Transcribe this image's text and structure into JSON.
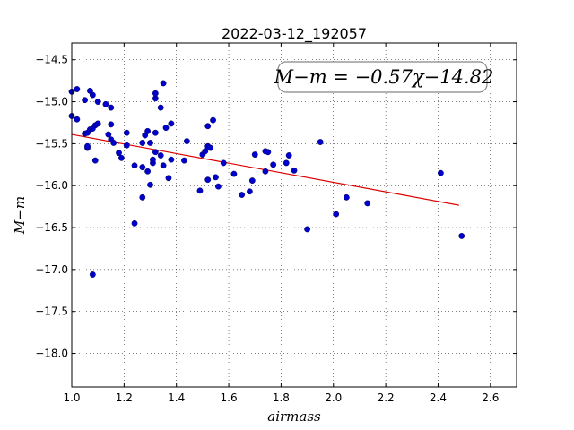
{
  "chart_data": {
    "type": "scatter",
    "title": "2022-03-12_192057",
    "xlabel": "airmass",
    "ylabel": "M−m",
    "xlim": [
      1.0,
      2.7
    ],
    "ylim": [
      -18.4,
      -14.3
    ],
    "y_inverted": true,
    "grid": true,
    "xticks": [
      1.0,
      1.2,
      1.4,
      1.6,
      1.8,
      2.0,
      2.2,
      2.4,
      2.6
    ],
    "xtick_labels": [
      "1.0",
      "1.2",
      "1.4",
      "1.6",
      "1.8",
      "2.0",
      "2.2",
      "2.4",
      "2.6"
    ],
    "yticks": [
      -14.5,
      -15.0,
      -15.5,
      -16.0,
      -16.5,
      -17.0,
      -17.5,
      -18.0
    ],
    "ytick_labels": [
      "−14.5",
      "−15.0",
      "−15.5",
      "−16.0",
      "−16.5",
      "−17.0",
      "−17.5",
      "−18.0"
    ],
    "annotation": "M−m = −0.57χ−14.82",
    "fit": {
      "slope": -0.57,
      "intercept": -14.82,
      "x_range": [
        1.0,
        2.48
      ],
      "color": "#dd0000"
    },
    "marker_color": "#0000cc",
    "points": [
      [
        1.0,
        -14.88
      ],
      [
        1.02,
        -14.85
      ],
      [
        1.0,
        -15.17
      ],
      [
        1.02,
        -15.21
      ],
      [
        1.05,
        -14.98
      ],
      [
        1.07,
        -14.87
      ],
      [
        1.08,
        -14.92
      ],
      [
        1.1,
        -15.0
      ],
      [
        1.13,
        -15.03
      ],
      [
        1.15,
        -15.07
      ],
      [
        1.09,
        -15.28
      ],
      [
        1.1,
        -15.26
      ],
      [
        1.15,
        -15.27
      ],
      [
        1.07,
        -15.33
      ],
      [
        1.08,
        -15.32
      ],
      [
        1.05,
        -15.38
      ],
      [
        1.06,
        -15.37
      ],
      [
        1.06,
        -15.55
      ],
      [
        1.06,
        -15.53
      ],
      [
        1.14,
        -15.39
      ],
      [
        1.15,
        -15.45
      ],
      [
        1.16,
        -15.49
      ],
      [
        1.09,
        -15.7
      ],
      [
        1.18,
        -15.61
      ],
      [
        1.19,
        -15.67
      ],
      [
        1.21,
        -15.52
      ],
      [
        1.21,
        -15.37
      ],
      [
        1.24,
        -15.76
      ],
      [
        1.24,
        -16.45
      ],
      [
        1.27,
        -15.78
      ],
      [
        1.27,
        -16.14
      ],
      [
        1.27,
        -15.49
      ],
      [
        1.28,
        -15.4
      ],
      [
        1.29,
        -15.35
      ],
      [
        1.3,
        -15.49
      ],
      [
        1.29,
        -15.83
      ],
      [
        1.3,
        -15.99
      ],
      [
        1.31,
        -15.73
      ],
      [
        1.31,
        -15.69
      ],
      [
        1.32,
        -15.6
      ],
      [
        1.32,
        -15.37
      ],
      [
        1.32,
        -14.96
      ],
      [
        1.32,
        -14.9
      ],
      [
        1.34,
        -15.07
      ],
      [
        1.35,
        -14.78
      ],
      [
        1.36,
        -15.31
      ],
      [
        1.38,
        -15.26
      ],
      [
        1.34,
        -15.64
      ],
      [
        1.35,
        -15.76
      ],
      [
        1.37,
        -15.91
      ],
      [
        1.38,
        -15.69
      ],
      [
        1.43,
        -15.7
      ],
      [
        1.44,
        -15.47
      ],
      [
        1.49,
        -16.06
      ],
      [
        1.5,
        -15.63
      ],
      [
        1.51,
        -15.59
      ],
      [
        1.52,
        -15.53
      ],
      [
        1.53,
        -15.55
      ],
      [
        1.52,
        -15.93
      ],
      [
        1.54,
        -15.22
      ],
      [
        1.52,
        -15.29
      ],
      [
        1.55,
        -15.9
      ],
      [
        1.56,
        -16.01
      ],
      [
        1.58,
        -15.73
      ],
      [
        1.62,
        -15.86
      ],
      [
        1.65,
        -16.11
      ],
      [
        1.68,
        -16.07
      ],
      [
        1.69,
        -15.94
      ],
      [
        1.7,
        -15.63
      ],
      [
        1.74,
        -15.59
      ],
      [
        1.75,
        -15.6
      ],
      [
        1.74,
        -15.83
      ],
      [
        1.77,
        -15.75
      ],
      [
        1.82,
        -15.73
      ],
      [
        1.83,
        -15.64
      ],
      [
        1.85,
        -15.82
      ],
      [
        1.9,
        -16.52
      ],
      [
        1.95,
        -15.48
      ],
      [
        2.01,
        -16.34
      ],
      [
        2.05,
        -16.14
      ],
      [
        2.13,
        -16.21
      ],
      [
        2.41,
        -15.85
      ],
      [
        2.49,
        -16.6
      ],
      [
        1.08,
        -17.06
      ]
    ]
  }
}
